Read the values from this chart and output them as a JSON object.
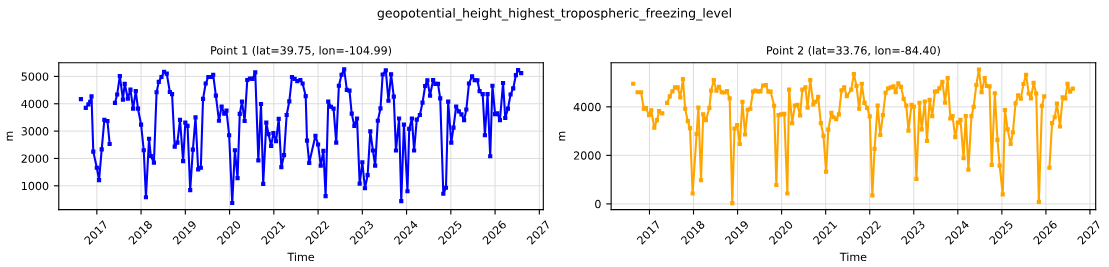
{
  "chart_data": [
    {
      "type": "line",
      "title": "Point 1 (lat=39.75, lon=-104.99)",
      "xlabel": "Time",
      "ylabel": "m",
      "annotations": [
        "geopotential_height_highest_tropospheric_freezing_level"
      ],
      "grid": true,
      "marker": "square",
      "line_style": "solid",
      "xlim": [
        2016.14,
        2027.09
      ],
      "xticks": [
        2017,
        2018,
        2019,
        2020,
        2021,
        2022,
        2023,
        2024,
        2025,
        2026,
        2027
      ],
      "ylim": [
        130,
        5500
      ],
      "yticks": [
        1000,
        2000,
        3000,
        4000,
        5000
      ],
      "x": [
        2016.64,
        2016.7,
        2016.75,
        2016.81,
        2016.85,
        2016.88,
        2016.92,
        2017.0,
        2017.05,
        2017.11,
        2017.17,
        2017.24,
        2017.29,
        2017.35,
        2017.41,
        2017.46,
        2017.52,
        2017.59,
        2017.63,
        2017.7,
        2017.76,
        2017.82,
        2017.88,
        2017.93,
        2018.0,
        2018.06,
        2018.11,
        2018.18,
        2018.22,
        2018.29,
        2018.35,
        2018.4,
        2018.46,
        2018.52,
        2018.58,
        2018.65,
        2018.7,
        2018.76,
        2018.82,
        2018.88,
        2018.95,
        2019.0,
        2019.05,
        2019.11,
        2019.17,
        2019.23,
        2019.29,
        2019.35,
        2019.4,
        2019.46,
        2019.52,
        2019.58,
        2019.63,
        2019.69,
        2019.76,
        2019.82,
        2019.88,
        2019.93,
        2019.99,
        2020.06,
        2020.12,
        2020.18,
        2020.23,
        2020.28,
        2020.34,
        2020.4,
        2020.46,
        2020.52,
        2020.58,
        2020.65,
        2020.71,
        2020.76,
        2020.83,
        2020.88,
        2020.94,
        2020.99,
        2021.05,
        2021.11,
        2021.17,
        2021.23,
        2021.29,
        2021.35,
        2021.41,
        2021.47,
        2021.53,
        2021.6,
        2021.65,
        2021.72,
        2021.75,
        2021.8,
        2021.94,
        2022.0,
        2022.06,
        2022.12,
        2022.17,
        2022.23,
        2022.29,
        2022.35,
        2022.41,
        2022.47,
        2022.53,
        2022.59,
        2022.65,
        2022.71,
        2022.76,
        2022.82,
        2022.88,
        2022.94,
        2023.0,
        2023.06,
        2023.12,
        2023.18,
        2023.24,
        2023.29,
        2023.35,
        2023.41,
        2023.46,
        2023.53,
        2023.59,
        2023.65,
        2023.71,
        2023.76,
        2023.83,
        2023.88,
        2023.94,
        2024.02,
        2024.06,
        2024.12,
        2024.17,
        2024.23,
        2024.3,
        2024.36,
        2024.42,
        2024.47,
        2024.53,
        2024.6,
        2024.65,
        2024.71,
        2024.76,
        2024.83,
        2024.89,
        2024.94,
        2025.01,
        2025.06,
        2025.12,
        2025.18,
        2025.24,
        2025.3,
        2025.35,
        2025.41,
        2025.48,
        2025.54,
        2025.6,
        2025.65,
        2025.72,
        2025.77,
        2025.83,
        2025.89,
        2025.94,
        2026.0,
        2026.05,
        2026.11,
        2026.18,
        2026.23,
        2026.29,
        2026.35,
        2026.41,
        2026.47,
        2026.52,
        2026.59
      ],
      "series": [
        {
          "color": "#0000ff",
          "values": [
            4170,
            null,
            3850,
            3980,
            4070,
            4270,
            2250,
            1660,
            1210,
            2330,
            3410,
            3370,
            2530,
            null,
            4030,
            4340,
            5010,
            4150,
            4730,
            4190,
            4520,
            3820,
            4460,
            3820,
            3240,
            2300,
            580,
            2720,
            2090,
            1850,
            4420,
            4800,
            4980,
            5170,
            5100,
            4430,
            4350,
            2430,
            2580,
            3410,
            1900,
            3310,
            3190,
            840,
            2320,
            3500,
            1600,
            1660,
            4180,
            4740,
            4980,
            4980,
            5060,
            4300,
            3380,
            3900,
            3640,
            3750,
            2850,
            370,
            2300,
            1280,
            3630,
            4080,
            3370,
            4870,
            4920,
            4910,
            5150,
            1930,
            3990,
            1070,
            3310,
            2890,
            2460,
            2930,
            2630,
            3450,
            1680,
            2120,
            3590,
            4090,
            4980,
            4910,
            4830,
            4870,
            4740,
            4280,
            2650,
            1840,
            2830,
            2510,
            1740,
            2280,
            620,
            4080,
            3890,
            3820,
            2580,
            4660,
            5060,
            5260,
            4510,
            4480,
            3640,
            3190,
            3460,
            1080,
            1860,
            910,
            1390,
            2990,
            2290,
            1740,
            3380,
            3830,
            5070,
            5220,
            4110,
            5080,
            4260,
            2290,
            3460,
            440,
            3240,
            800,
            3080,
            3460,
            2290,
            3420,
            3590,
            4040,
            4650,
            4860,
            4300,
            4870,
            4730,
            4730,
            4200,
            710,
            930,
            4080,
            2580,
            3130,
            3900,
            3720,
            3610,
            3400,
            3790,
            4740,
            5000,
            4860,
            4860,
            4460,
            4350,
            2850,
            4350,
            2080,
            4660,
            3620,
            3650,
            3400,
            4760,
            3480,
            3820,
            4340,
            4560,
            5050,
            5230,
            5120
          ]
        }
      ]
    },
    {
      "type": "line",
      "title": "Point 2 (lat=33.76, lon=-84.40)",
      "xlabel": "Time",
      "ylabel": "m",
      "grid": true,
      "marker": "square",
      "line_style": "solid",
      "xlim": [
        2016.13,
        2027.13
      ],
      "xticks": [
        2017,
        2018,
        2019,
        2020,
        2021,
        2022,
        2023,
        2024,
        2025,
        2026,
        2027
      ],
      "ylim": [
        -235,
        5817
      ],
      "yticks": [
        0,
        2000,
        4000
      ],
      "x": [
        2016.63,
        2016.68,
        2016.73,
        2016.81,
        2016.87,
        2016.92,
        2016.99,
        2017.04,
        2017.11,
        2017.17,
        2017.22,
        2017.29,
        2017.35,
        2017.4,
        2017.46,
        2017.52,
        2017.58,
        2017.64,
        2017.7,
        2017.76,
        2017.81,
        2017.87,
        2017.92,
        2017.98,
        2018.07,
        2018.11,
        2018.17,
        2018.22,
        2018.28,
        2018.36,
        2018.4,
        2018.46,
        2018.52,
        2018.58,
        2018.64,
        2018.7,
        2018.76,
        2018.82,
        2018.88,
        2018.93,
        2018.99,
        2019.05,
        2019.11,
        2019.17,
        2019.23,
        2019.29,
        2019.35,
        2019.4,
        2019.46,
        2019.52,
        2019.58,
        2019.64,
        2019.7,
        2019.75,
        2019.83,
        2019.88,
        2019.93,
        2019.99,
        2020.06,
        2020.13,
        2020.17,
        2020.24,
        2020.3,
        2020.36,
        2020.42,
        2020.47,
        2020.54,
        2020.59,
        2020.65,
        2020.72,
        2020.77,
        2020.83,
        2020.89,
        2020.95,
        2021.01,
        2021.06,
        2021.13,
        2021.18,
        2021.24,
        2021.3,
        2021.36,
        2021.42,
        2021.48,
        2021.58,
        2021.64,
        2021.7,
        2021.76,
        2021.82,
        2021.88,
        2021.94,
        2022.0,
        2022.06,
        2022.11,
        2022.18,
        2022.24,
        2022.3,
        2022.36,
        2022.42,
        2022.48,
        2022.54,
        2022.59,
        2022.65,
        2022.71,
        2022.77,
        2022.83,
        2022.88,
        2022.95,
        2023.0,
        2023.06,
        2023.13,
        2023.18,
        2023.25,
        2023.3,
        2023.36,
        2023.42,
        2023.48,
        2023.53,
        2023.58,
        2023.65,
        2023.71,
        2023.77,
        2023.83,
        2023.88,
        2023.94,
        2024.0,
        2024.06,
        2024.13,
        2024.18,
        2024.24,
        2024.31,
        2024.36,
        2024.42,
        2024.48,
        2024.54,
        2024.61,
        2024.66,
        2024.72,
        2024.77,
        2024.84,
        2024.9,
        2024.95,
        2025.02,
        2025.07,
        2025.13,
        2025.2,
        2025.25,
        2025.31,
        2025.37,
        2025.43,
        2025.49,
        2025.55,
        2025.61,
        2025.66,
        2025.72,
        2025.78,
        2025.84,
        2025.91,
        2025.96,
        2026.02,
        2026.08,
        2026.14,
        2026.2,
        2026.25,
        2026.32,
        2026.38,
        2026.44,
        2026.49,
        2026.55,
        2026.61
      ],
      "series": [
        {
          "color": "#ffa500",
          "values": [
            4950,
            null,
            4600,
            4600,
            3920,
            3950,
            3660,
            3860,
            3140,
            3450,
            3820,
            3730,
            null,
            4160,
            4430,
            4640,
            4800,
            4800,
            4390,
            5140,
            3920,
            3410,
            3120,
            430,
            2880,
            3970,
            980,
            3690,
            3450,
            3960,
            4670,
            5100,
            4670,
            4820,
            4600,
            4590,
            4650,
            4350,
            30,
            3100,
            3250,
            2470,
            4210,
            2860,
            3880,
            3920,
            4630,
            4670,
            4640,
            4640,
            4880,
            4900,
            4630,
            4630,
            4040,
            780,
            3660,
            3690,
            3710,
            430,
            4710,
            3330,
            4050,
            4080,
            3650,
            4710,
            4800,
            3970,
            5100,
            4100,
            4210,
            4410,
            3330,
            2800,
            1330,
            3060,
            3750,
            3570,
            3490,
            3690,
            4680,
            4800,
            4440,
            4710,
            5350,
            4860,
            3920,
            4950,
            4160,
            3960,
            3610,
            350,
            2270,
            4050,
            2840,
            3660,
            4580,
            4760,
            4800,
            4840,
            4600,
            4970,
            4820,
            4330,
            4050,
            3020,
            4080,
            4010,
            1030,
            4170,
            3070,
            4220,
            2600,
            4290,
            3620,
            4630,
            4640,
            4760,
            5030,
            4170,
            5180,
            3520,
            3620,
            2750,
            3350,
            3460,
            1880,
            3620,
            1410,
            3620,
            4000,
            4900,
            5540,
            4600,
            5180,
            4860,
            4840,
            1610,
            4560,
            2640,
            1580,
            390,
            3870,
            3070,
            2470,
            2950,
            4140,
            4470,
            4340,
            4940,
            5320,
            4550,
            4350,
            4990,
            4550,
            80,
            4040,
            4430,
            null,
            1490,
            3330,
            3570,
            4130,
            3190,
            4390,
            4350,
            4950,
            4630,
            4750
          ]
        }
      ]
    }
  ]
}
